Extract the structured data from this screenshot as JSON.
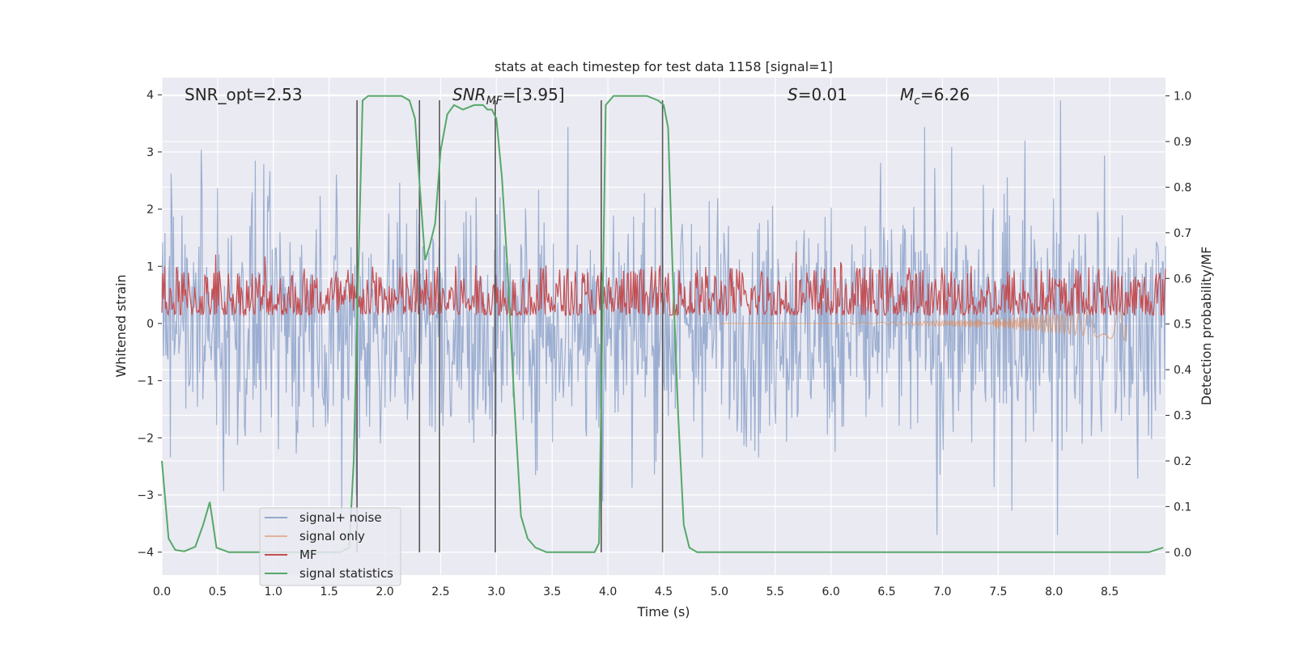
{
  "chart_data": {
    "type": "line",
    "title": "stats at each timestep for test data 1158 [signal=1]",
    "xlabel": "Time (s)",
    "ylabel": "Whitened strain",
    "y2label": "Detection probability/MF",
    "xlim": [
      0,
      9.0
    ],
    "ylim": [
      -4.4,
      4.3
    ],
    "y2lim": [
      -0.05,
      1.04
    ],
    "xticks": [
      0.0,
      0.5,
      1.0,
      1.5,
      2.0,
      2.5,
      3.0,
      3.5,
      4.0,
      4.5,
      5.0,
      5.5,
      6.0,
      6.5,
      7.0,
      7.5,
      8.0,
      8.5
    ],
    "xtick_labels": [
      "0.0",
      "0.5",
      "1.0",
      "1.5",
      "2.0",
      "2.5",
      "3.0",
      "3.5",
      "4.0",
      "4.5",
      "5.0",
      "5.5",
      "6.0",
      "6.5",
      "7.0",
      "7.5",
      "8.0",
      "8.5"
    ],
    "yticks": [
      4,
      3,
      2,
      1,
      0,
      -1,
      -2,
      -3,
      -4
    ],
    "ytick_labels": [
      "4",
      "3",
      "2",
      "1",
      "0",
      "−1",
      "−2",
      "−3",
      "−4"
    ],
    "y2ticks": [
      1.0,
      0.9,
      0.8,
      0.7,
      0.6,
      0.5,
      0.4,
      0.3,
      0.2,
      0.1,
      0.0
    ],
    "y2tick_labels": [
      "1.0",
      "0.9",
      "0.8",
      "0.7",
      "0.6",
      "0.5",
      "0.4",
      "0.3",
      "0.2",
      "0.1",
      "0.0"
    ],
    "annotations": {
      "snr_opt": "SNR_opt=2.53",
      "snr_mf_label": "SNR",
      "snr_mf_sub": "MF",
      "snr_mf_value": "=[3.95]",
      "s_label": "S",
      "s_value": "=0.01",
      "mc_label": "M",
      "mc_sub": "c",
      "mc_value": "=6.26"
    },
    "vlines": [
      1.75,
      2.31,
      2.49,
      2.99,
      3.94,
      4.49
    ],
    "legend": {
      "placement": "lower-left",
      "entries": [
        "signal+ noise",
        "signal only",
        "MF",
        "signal statistics"
      ]
    },
    "series": [
      {
        "name": "signal statistics",
        "axis": "right",
        "color": "#55a868",
        "x": [
          0.0,
          0.06,
          0.12,
          0.2,
          0.3,
          0.37,
          0.43,
          0.49,
          0.6,
          0.8,
          1.0,
          1.2,
          1.4,
          1.6,
          1.68,
          1.72,
          1.76,
          1.8,
          1.85,
          2.0,
          2.15,
          2.22,
          2.27,
          2.31,
          2.36,
          2.4,
          2.45,
          2.5,
          2.56,
          2.62,
          2.7,
          2.8,
          2.88,
          2.92,
          2.96,
          3.0,
          3.05,
          3.1,
          3.16,
          3.22,
          3.28,
          3.35,
          3.45,
          3.6,
          3.75,
          3.88,
          3.92,
          3.95,
          3.98,
          4.05,
          4.2,
          4.35,
          4.45,
          4.5,
          4.54,
          4.58,
          4.63,
          4.68,
          4.73,
          4.8,
          5.0,
          6.0,
          7.0,
          8.0,
          8.5,
          8.7,
          8.85,
          8.98
        ],
        "values": [
          0.2,
          0.03,
          0.005,
          0.002,
          0.012,
          0.06,
          0.11,
          0.01,
          0.0,
          0.0,
          0.0,
          0.0,
          0.0,
          0.0,
          0.01,
          0.2,
          0.6,
          0.99,
          1.0,
          1.0,
          1.0,
          0.99,
          0.95,
          0.81,
          0.64,
          0.67,
          0.72,
          0.88,
          0.96,
          0.98,
          0.97,
          0.98,
          0.98,
          0.97,
          0.97,
          0.95,
          0.82,
          0.62,
          0.33,
          0.08,
          0.03,
          0.01,
          0.0,
          0.0,
          0.0,
          0.0,
          0.02,
          0.5,
          0.98,
          1.0,
          1.0,
          1.0,
          0.99,
          0.98,
          0.93,
          0.62,
          0.3,
          0.06,
          0.01,
          0.0,
          0.0,
          0.0,
          0.0,
          0.0,
          0.0,
          0.0,
          0.0,
          0.01
        ]
      },
      {
        "name": "signal+ noise",
        "axis": "left",
        "color": "#4c72b0",
        "description": "dense whitened noise trace",
        "amplitude_envelope": [
          -3.7,
          3.9
        ]
      },
      {
        "name": "MF",
        "axis": "right",
        "color": "#c44e52",
        "baseline": 0.5,
        "range": [
          0.5,
          0.63
        ]
      },
      {
        "name": "signal only",
        "axis": "left",
        "color": "#dd8452",
        "chirp_peak_time": 8.65,
        "chirp_peak_amplitude": 0.3
      }
    ]
  }
}
